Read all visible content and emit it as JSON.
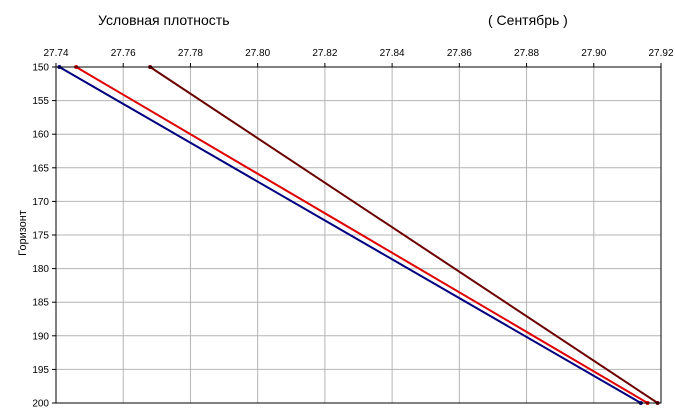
{
  "chart_data": {
    "type": "line",
    "title": "Условная плотность",
    "subtitle": "( Сентябрь )",
    "xlabel": "",
    "ylabel": "Горизонт",
    "x_axis_position": "top",
    "y_axis_inverted": true,
    "grid": true,
    "xlim": [
      27.74,
      27.92
    ],
    "ylim": [
      150,
      200
    ],
    "xticks": [
      "27.74",
      "27.76",
      "27.78",
      "27.80",
      "27.82",
      "27.84",
      "27.86",
      "27.88",
      "27.90",
      "27.92"
    ],
    "yticks": [
      "150",
      "155",
      "160",
      "165",
      "170",
      "175",
      "180",
      "185",
      "190",
      "195",
      "200"
    ],
    "series": [
      {
        "color": "#000080",
        "points": [
          [
            27.741,
            150
          ],
          [
            27.914,
            200
          ]
        ]
      },
      {
        "color": "#e00000",
        "points": [
          [
            27.746,
            150
          ],
          [
            27.916,
            200
          ]
        ]
      },
      {
        "color": "#6b0000",
        "points": [
          [
            27.768,
            150
          ],
          [
            27.919,
            200
          ]
        ]
      }
    ]
  }
}
